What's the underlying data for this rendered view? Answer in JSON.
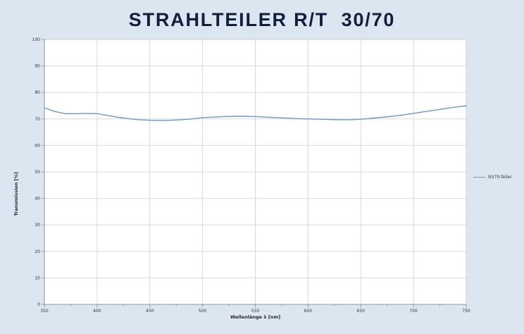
{
  "title": "STRAHLTEILER R/T  30/70",
  "colors": {
    "page_background": "#dce6f1",
    "title_text": "#111f3c",
    "plot_background": "#ffffff",
    "gridline": "#d9d9d9",
    "plot_border": "#c7cdd6",
    "axis_line": "#8f979f",
    "tick_text": "#333333",
    "curve": "#7296c4"
  },
  "legend": {
    "label": "30/70-Teiler",
    "position": "right-middle"
  },
  "axes": {
    "x_title": "Wellenlänge λ [nm]",
    "y_title": "Transmission [%]"
  },
  "chart_data": {
    "type": "line",
    "title": "STRAHLTEILER R/T 30/70",
    "xlabel": "Wellenlänge λ [nm]",
    "ylabel": "Transmission [%]",
    "xlim": [
      350,
      750
    ],
    "ylim": [
      0,
      100
    ],
    "x_major_ticks": [
      350,
      400,
      450,
      500,
      550,
      600,
      650,
      700,
      750
    ],
    "x_minor_step": 25,
    "y_ticks": [
      0,
      10,
      20,
      30,
      40,
      50,
      60,
      70,
      80,
      90,
      100
    ],
    "grid": true,
    "legend_position": "right",
    "series": [
      {
        "name": "30/70-Teiler",
        "color": "#7296c4",
        "x": [
          350,
          360,
          370,
          380,
          390,
          400,
          410,
          420,
          430,
          440,
          450,
          460,
          470,
          480,
          490,
          500,
          510,
          520,
          530,
          540,
          550,
          560,
          570,
          580,
          590,
          600,
          610,
          620,
          630,
          640,
          650,
          660,
          670,
          680,
          690,
          700,
          710,
          720,
          730,
          740,
          750
        ],
        "y": [
          74.2,
          72.8,
          72.0,
          72.0,
          72.1,
          72.0,
          71.3,
          70.6,
          70.1,
          69.7,
          69.5,
          69.4,
          69.5,
          69.7,
          70.0,
          70.5,
          70.7,
          70.9,
          71.0,
          71.0,
          70.9,
          70.7,
          70.5,
          70.3,
          70.1,
          70.0,
          69.9,
          69.8,
          69.7,
          69.7,
          69.9,
          70.2,
          70.6,
          71.0,
          71.5,
          72.1,
          72.7,
          73.3,
          73.9,
          74.5,
          75.0
        ]
      }
    ]
  }
}
